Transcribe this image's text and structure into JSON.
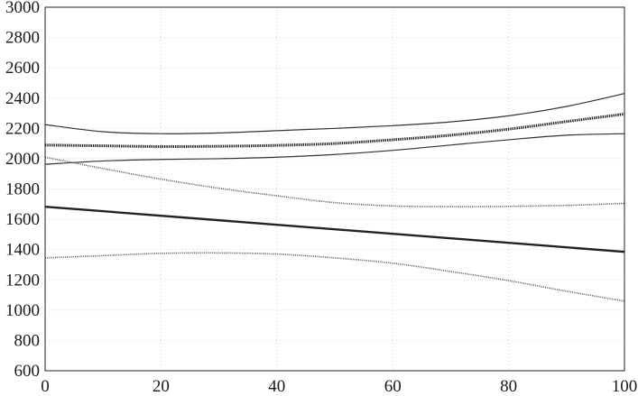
{
  "chart_data": {
    "type": "line",
    "title": "",
    "xlabel": "",
    "ylabel": "",
    "xlim": [
      0,
      100
    ],
    "ylim": [
      600,
      3000
    ],
    "grid": true,
    "x_ticks": [
      0,
      20,
      40,
      60,
      80,
      100
    ],
    "y_ticks": [
      600,
      800,
      1000,
      1200,
      1400,
      1600,
      1800,
      2000,
      2200,
      2400,
      2600,
      2800,
      3000
    ],
    "x_tick_labels": [
      "0",
      "20",
      "40",
      "60",
      "80",
      "100"
    ],
    "y_tick_labels": [
      "600",
      "800",
      "1000",
      "1200",
      "1400",
      "1600",
      "1800",
      "2000",
      "2200",
      "2400",
      "2600",
      "2800",
      "3000"
    ],
    "series": [
      {
        "style": "solid-thin",
        "color": "#333333",
        "x": [
          0,
          10,
          20,
          30,
          40,
          50,
          60,
          70,
          80,
          90,
          100
        ],
        "y": [
          2225,
          2178,
          2165,
          2170,
          2185,
          2200,
          2218,
          2243,
          2283,
          2345,
          2430
        ]
      },
      {
        "style": "dotted-thick",
        "color": "#222222",
        "x": [
          0,
          10,
          20,
          30,
          40,
          50,
          60,
          70,
          80,
          90,
          100
        ],
        "y": [
          2090,
          2085,
          2080,
          2082,
          2088,
          2100,
          2125,
          2155,
          2195,
          2245,
          2295
        ]
      },
      {
        "style": "solid-thin",
        "color": "#333333",
        "x": [
          0,
          10,
          20,
          30,
          40,
          50,
          60,
          70,
          80,
          90,
          100
        ],
        "y": [
          1963,
          1985,
          1995,
          2000,
          2010,
          2028,
          2055,
          2090,
          2125,
          2155,
          2165
        ]
      },
      {
        "style": "dotted-thin",
        "color": "#555555",
        "x": [
          0,
          10,
          20,
          30,
          40,
          50,
          60,
          70,
          80,
          90,
          100
        ],
        "y": [
          2010,
          1935,
          1865,
          1805,
          1755,
          1710,
          1688,
          1683,
          1685,
          1692,
          1705
        ]
      },
      {
        "style": "solid-thick",
        "color": "#222222",
        "x": [
          0,
          100
        ],
        "y": [
          1683,
          1385
        ]
      },
      {
        "style": "dotted-thin",
        "color": "#555555",
        "x": [
          0,
          10,
          20,
          30,
          40,
          50,
          60,
          70,
          80,
          90,
          100
        ],
        "y": [
          1345,
          1360,
          1375,
          1378,
          1370,
          1345,
          1310,
          1255,
          1195,
          1125,
          1060
        ]
      }
    ]
  }
}
